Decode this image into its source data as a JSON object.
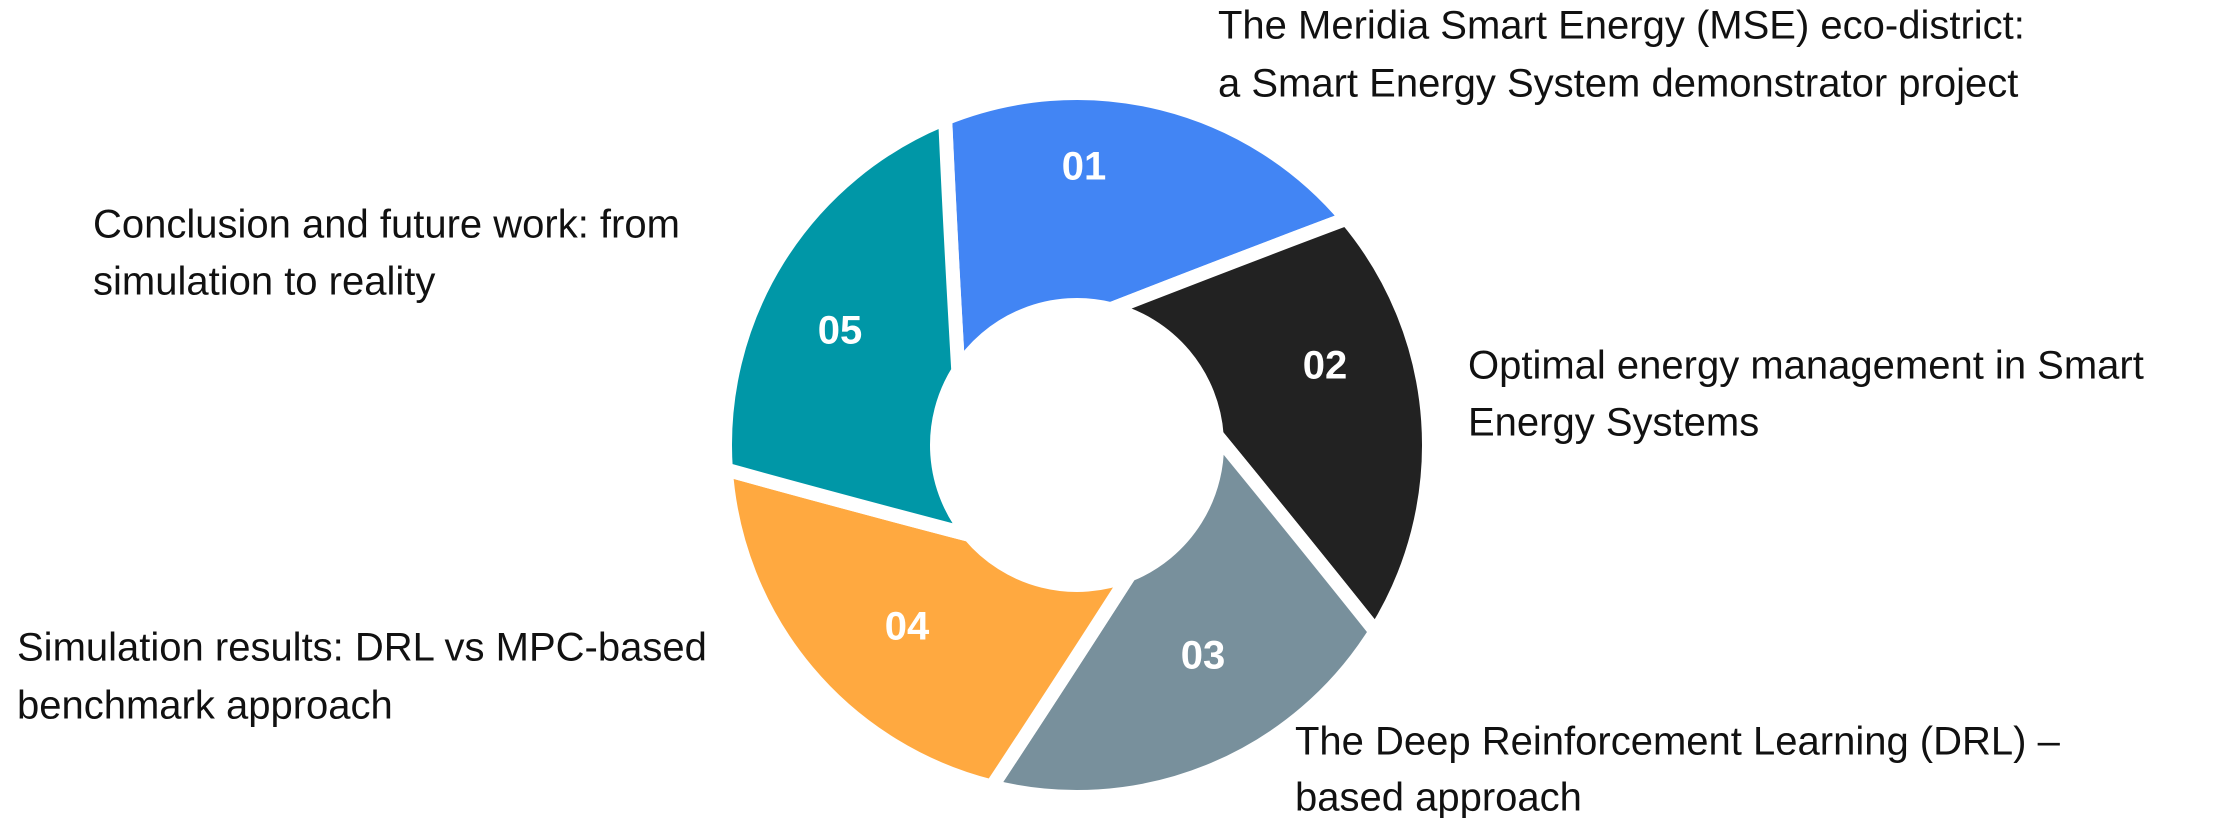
{
  "items": [
    {
      "number": "01",
      "lines": [
        "The Meridia Smart Energy (MSE) eco-district:",
        "a Smart Energy System demonstrator project"
      ]
    },
    {
      "number": "02",
      "lines": [
        "Optimal energy management in Smart",
        "Energy Systems"
      ]
    },
    {
      "number": "03",
      "lines": [
        "The Deep Reinforcement Learning  (DRL) –",
        "based approach"
      ]
    },
    {
      "number": "04",
      "lines": [
        "Simulation results: DRL vs MPC-based",
        "benchmark approach"
      ]
    },
    {
      "number": "05",
      "lines": [
        "Conclusion and future work: from",
        "simulation to reality"
      ]
    }
  ]
}
